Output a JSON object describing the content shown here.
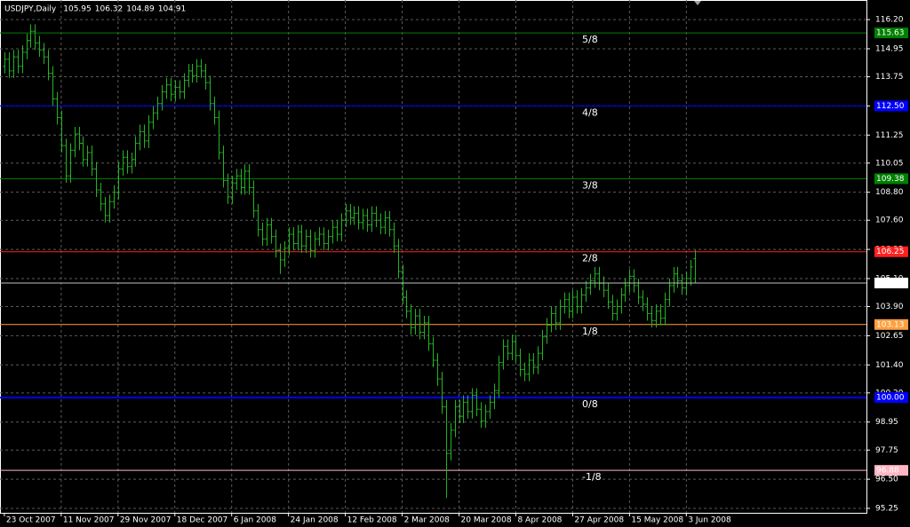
{
  "chart_data": {
    "type": "ohlc",
    "title": "USDJPY,Daily",
    "color": "#22b422",
    "background": "#000000",
    "grid": true,
    "xlim": [
      -1,
      197.2
    ],
    "ylim": [
      95.06,
      117.04
    ],
    "xticks": [
      {
        "value": 0,
        "label": "23 Oct 2007"
      },
      {
        "value": 13,
        "label": "11 Nov 2007"
      },
      {
        "value": 26,
        "label": "29 Nov 2007"
      },
      {
        "value": 39,
        "label": "18 Dec 2007"
      },
      {
        "value": 52,
        "label": "6 Jan 2008"
      },
      {
        "value": 65,
        "label": "24 Jan 2008"
      },
      {
        "value": 78,
        "label": "12 Feb 2008"
      },
      {
        "value": 91,
        "label": "2 Mar 2008"
      },
      {
        "value": 104,
        "label": "20 Mar 2008"
      },
      {
        "value": 117,
        "label": "8 Apr 2008"
      },
      {
        "value": 130,
        "label": "27 Apr 2008"
      },
      {
        "value": 143,
        "label": "15 May 2008"
      },
      {
        "value": 156,
        "label": "3 Jun 2008"
      }
    ],
    "yticks": [
      {
        "value": 116.2,
        "label": "116.20"
      },
      114.95,
      113.75,
      {
        "value": 112.5,
        "label": "112.50"
      },
      111.25,
      110.05,
      {
        "value": 108.8,
        "label": "108.80"
      },
      {
        "value": 107.6,
        "label": "107.60"
      },
      106.35,
      {
        "value": 105.1,
        "label": "105.10"
      },
      {
        "value": 103.9,
        "label": "103.90"
      },
      102.65,
      {
        "value": 101.4,
        "label": "101.40"
      },
      {
        "value": 100.2,
        "label": "100.20"
      },
      98.95,
      97.75,
      {
        "value": 96.5,
        "label": "96.50"
      },
      95.25
    ],
    "levels": [
      {
        "name": "5/8",
        "value": 115.63,
        "color": "#008000"
      },
      {
        "name": "4/8",
        "value": 112.5,
        "value_label": "112.50",
        "color": "#0000ff"
      },
      {
        "name": "3/8",
        "value": 109.38,
        "color": "#008000"
      },
      {
        "name": "2/8",
        "value": 106.25,
        "color": "#ff2020"
      },
      {
        "name": "1/8",
        "value": 103.13,
        "color": "#ffa040"
      },
      {
        "name": "0/8",
        "value": 100,
        "value_label": "100.00",
        "color": "#0000ff",
        "line_width": 2
      },
      {
        "name": "-1/8",
        "value": 96.88,
        "color": "#ffb6c1"
      }
    ],
    "price_line_color": "#c0c0c0",
    "bars": [
      [
        114.2,
        114.8,
        113.9,
        114.5
      ],
      [
        114.5,
        114.8,
        113.7,
        114.0
      ],
      [
        114.0,
        114.9,
        113.7,
        114.6
      ],
      [
        114.6,
        114.9,
        113.9,
        114.2
      ],
      [
        114.2,
        115.1,
        113.9,
        114.8
      ],
      [
        114.8,
        115.6,
        114.5,
        115.3
      ],
      [
        115.3,
        116.0,
        115.0,
        115.7
      ],
      [
        115.7,
        116.0,
        114.9,
        115.2
      ],
      [
        115.2,
        115.5,
        114.6,
        114.9
      ],
      [
        114.9,
        115.2,
        114.3,
        114.6
      ],
      [
        114.6,
        114.9,
        113.6,
        113.9
      ],
      [
        113.9,
        114.2,
        112.5,
        112.8
      ],
      [
        112.8,
        113.1,
        111.7,
        112.0
      ],
      [
        112.0,
        112.3,
        110.5,
        110.8
      ],
      [
        110.8,
        111.1,
        109.2,
        109.5
      ],
      [
        109.5,
        110.9,
        109.2,
        110.6
      ],
      [
        110.6,
        111.6,
        110.3,
        111.3
      ],
      [
        111.3,
        111.6,
        110.6,
        110.9
      ],
      [
        110.9,
        111.2,
        109.9,
        110.2
      ],
      [
        110.2,
        110.8,
        109.9,
        110.5
      ],
      [
        110.5,
        110.8,
        109.5,
        109.8
      ],
      [
        109.8,
        110.1,
        108.6,
        108.9
      ],
      [
        108.9,
        109.2,
        108.0,
        108.3
      ],
      [
        108.3,
        108.6,
        107.5,
        107.8
      ],
      [
        107.8,
        108.7,
        107.5,
        108.4
      ],
      [
        108.4,
        109.1,
        108.1,
        108.8
      ],
      [
        108.8,
        110.1,
        108.5,
        109.8
      ],
      [
        109.8,
        110.6,
        109.5,
        110.3
      ],
      [
        110.3,
        110.6,
        109.6,
        109.9
      ],
      [
        109.9,
        110.5,
        109.6,
        110.2
      ],
      [
        110.2,
        111.2,
        109.9,
        110.9
      ],
      [
        110.9,
        111.7,
        110.6,
        111.4
      ],
      [
        111.4,
        111.7,
        110.7,
        111.0
      ],
      [
        111.0,
        112.1,
        110.7,
        111.8
      ],
      [
        111.8,
        112.5,
        111.5,
        112.2
      ],
      [
        112.2,
        112.9,
        111.9,
        112.6
      ],
      [
        112.6,
        113.4,
        112.3,
        113.1
      ],
      [
        113.1,
        113.7,
        112.8,
        113.4
      ],
      [
        113.4,
        113.7,
        112.7,
        113.0
      ],
      [
        113.0,
        113.6,
        112.7,
        113.3
      ],
      [
        113.3,
        113.6,
        112.8,
        113.1
      ],
      [
        113.1,
        113.9,
        112.8,
        113.6
      ],
      [
        113.6,
        114.3,
        113.3,
        114.0
      ],
      [
        114.0,
        114.3,
        113.5,
        113.8
      ],
      [
        113.8,
        114.5,
        113.5,
        114.2
      ],
      [
        114.2,
        114.5,
        113.7,
        114.0
      ],
      [
        114.0,
        114.3,
        113.2,
        113.5
      ],
      [
        113.5,
        113.8,
        112.3,
        112.6
      ],
      [
        112.6,
        112.9,
        111.7,
        112.0
      ],
      [
        112.0,
        112.3,
        110.2,
        110.5
      ],
      [
        110.5,
        110.8,
        109.0,
        109.3
      ],
      [
        109.3,
        109.6,
        108.3,
        108.6
      ],
      [
        108.6,
        109.5,
        108.3,
        109.2
      ],
      [
        109.2,
        109.8,
        108.9,
        109.5
      ],
      [
        109.5,
        109.8,
        108.7,
        109.0
      ],
      [
        109.0,
        110.0,
        108.7,
        109.7
      ],
      [
        109.7,
        110.0,
        108.7,
        109.0
      ],
      [
        109.0,
        109.3,
        107.7,
        108.0
      ],
      [
        108.0,
        108.3,
        106.9,
        107.2
      ],
      [
        107.2,
        107.5,
        106.5,
        106.8
      ],
      [
        106.8,
        107.7,
        106.5,
        107.4
      ],
      [
        107.4,
        107.7,
        106.6,
        106.9
      ],
      [
        106.9,
        107.2,
        106.0,
        106.3
      ],
      [
        106.3,
        106.6,
        105.3,
        105.9
      ],
      [
        105.9,
        106.7,
        105.6,
        106.4
      ],
      [
        106.4,
        107.3,
        106.1,
        107.0
      ],
      [
        107.0,
        107.3,
        106.3,
        106.6
      ],
      [
        106.6,
        107.4,
        106.3,
        107.1
      ],
      [
        107.1,
        107.4,
        106.2,
        106.5
      ],
      [
        106.5,
        107.2,
        106.2,
        106.9
      ],
      [
        106.9,
        107.2,
        106.0,
        106.3
      ],
      [
        106.3,
        107.1,
        106.0,
        106.8
      ],
      [
        106.8,
        107.3,
        106.5,
        107.0
      ],
      [
        107.0,
        107.3,
        106.3,
        106.6
      ],
      [
        106.6,
        107.2,
        106.3,
        106.9
      ],
      [
        106.9,
        107.6,
        106.6,
        107.3
      ],
      [
        107.3,
        107.6,
        106.7,
        107.0
      ],
      [
        107.0,
        107.9,
        106.7,
        107.6
      ],
      [
        107.6,
        108.3,
        107.3,
        108.0
      ],
      [
        108.0,
        108.3,
        107.4,
        107.7
      ],
      [
        107.7,
        108.2,
        107.4,
        107.9
      ],
      [
        107.9,
        108.2,
        107.2,
        107.5
      ],
      [
        107.5,
        108.1,
        107.2,
        107.8
      ],
      [
        107.8,
        108.1,
        107.1,
        107.4
      ],
      [
        107.4,
        108.2,
        107.1,
        107.9
      ],
      [
        107.9,
        108.2,
        107.3,
        107.6
      ],
      [
        107.6,
        107.9,
        107.0,
        107.3
      ],
      [
        107.3,
        108.0,
        107.0,
        107.7
      ],
      [
        107.7,
        108.0,
        106.9,
        107.2
      ],
      [
        107.2,
        107.5,
        106.2,
        106.5
      ],
      [
        106.5,
        106.8,
        105.1,
        105.4
      ],
      [
        105.4,
        105.7,
        104.0,
        104.3
      ],
      [
        104.3,
        104.6,
        103.4,
        103.7
      ],
      [
        103.7,
        104.0,
        102.7,
        103.0
      ],
      [
        103.0,
        103.8,
        102.7,
        103.5
      ],
      [
        103.5,
        103.8,
        102.5,
        102.8
      ],
      [
        102.8,
        103.5,
        102.5,
        103.2
      ],
      [
        103.2,
        103.5,
        102.0,
        102.3
      ],
      [
        102.3,
        102.6,
        101.3,
        101.6
      ],
      [
        101.6,
        101.9,
        100.5,
        100.8
      ],
      [
        100.8,
        101.1,
        99.3,
        99.6
      ],
      [
        99.6,
        99.9,
        95.7,
        97.6
      ],
      [
        97.6,
        98.9,
        97.3,
        98.6
      ],
      [
        98.6,
        99.9,
        98.3,
        99.6
      ],
      [
        99.6,
        99.9,
        98.9,
        99.2
      ],
      [
        99.2,
        100.1,
        98.9,
        99.8
      ],
      [
        99.8,
        100.1,
        99.1,
        99.4
      ],
      [
        99.4,
        100.4,
        99.1,
        100.1
      ],
      [
        100.1,
        100.4,
        99.2,
        99.5
      ],
      [
        99.5,
        99.8,
        98.7,
        99.0
      ],
      [
        99.0,
        99.7,
        98.7,
        99.4
      ],
      [
        99.4,
        100.1,
        99.1,
        99.8
      ],
      [
        99.8,
        100.6,
        99.5,
        100.3
      ],
      [
        100.3,
        101.8,
        100.0,
        101.5
      ],
      [
        101.5,
        102.5,
        101.2,
        102.2
      ],
      [
        102.2,
        102.5,
        101.6,
        101.9
      ],
      [
        101.9,
        102.7,
        101.6,
        102.4
      ],
      [
        102.4,
        102.7,
        101.5,
        101.8
      ],
      [
        101.8,
        102.1,
        100.9,
        101.2
      ],
      [
        101.2,
        101.5,
        100.7,
        101.0
      ],
      [
        101.0,
        101.9,
        100.7,
        101.6
      ],
      [
        101.6,
        101.9,
        101.0,
        101.3
      ],
      [
        101.3,
        102.2,
        101.0,
        101.9
      ],
      [
        101.9,
        102.9,
        101.6,
        102.6
      ],
      [
        102.6,
        103.4,
        102.3,
        103.1
      ],
      [
        103.1,
        103.9,
        102.8,
        103.6
      ],
      [
        103.6,
        103.9,
        102.9,
        103.2
      ],
      [
        103.2,
        104.2,
        102.9,
        103.9
      ],
      [
        103.9,
        104.5,
        103.6,
        104.2
      ],
      [
        104.2,
        104.5,
        103.4,
        103.7
      ],
      [
        103.7,
        104.6,
        103.4,
        104.3
      ],
      [
        104.3,
        104.6,
        103.6,
        103.9
      ],
      [
        103.9,
        104.7,
        103.6,
        104.4
      ],
      [
        104.4,
        105.0,
        104.1,
        104.7
      ],
      [
        104.7,
        105.3,
        104.4,
        105.0
      ],
      [
        105.0,
        105.6,
        104.7,
        105.3
      ],
      [
        105.3,
        105.6,
        104.6,
        104.9
      ],
      [
        104.9,
        105.2,
        104.3,
        104.6
      ],
      [
        104.6,
        104.9,
        103.8,
        104.1
      ],
      [
        104.1,
        104.4,
        103.3,
        103.6
      ],
      [
        103.6,
        104.2,
        103.3,
        103.9
      ],
      [
        103.9,
        104.7,
        103.6,
        104.4
      ],
      [
        104.4,
        105.1,
        104.1,
        104.8
      ],
      [
        104.8,
        105.5,
        104.5,
        105.2
      ],
      [
        105.2,
        105.5,
        104.5,
        104.8
      ],
      [
        104.8,
        105.1,
        104.0,
        104.3
      ],
      [
        104.3,
        104.6,
        103.7,
        104.0
      ],
      [
        104.0,
        104.3,
        103.3,
        103.6
      ],
      [
        103.6,
        103.9,
        103.0,
        103.3
      ],
      [
        103.3,
        104.0,
        103.0,
        103.7
      ],
      [
        103.7,
        104.0,
        103.1,
        103.4
      ],
      [
        103.4,
        104.5,
        103.1,
        104.2
      ],
      [
        104.2,
        105.1,
        103.9,
        104.8
      ],
      [
        104.8,
        105.6,
        104.5,
        105.3
      ],
      [
        105.3,
        105.6,
        104.7,
        105.0
      ],
      [
        105.0,
        105.3,
        104.4,
        104.7
      ],
      [
        104.7,
        105.4,
        104.4,
        105.1
      ],
      [
        105.1,
        105.9,
        104.8,
        105.6
      ],
      [
        105.95,
        106.32,
        104.89,
        104.91
      ]
    ]
  }
}
